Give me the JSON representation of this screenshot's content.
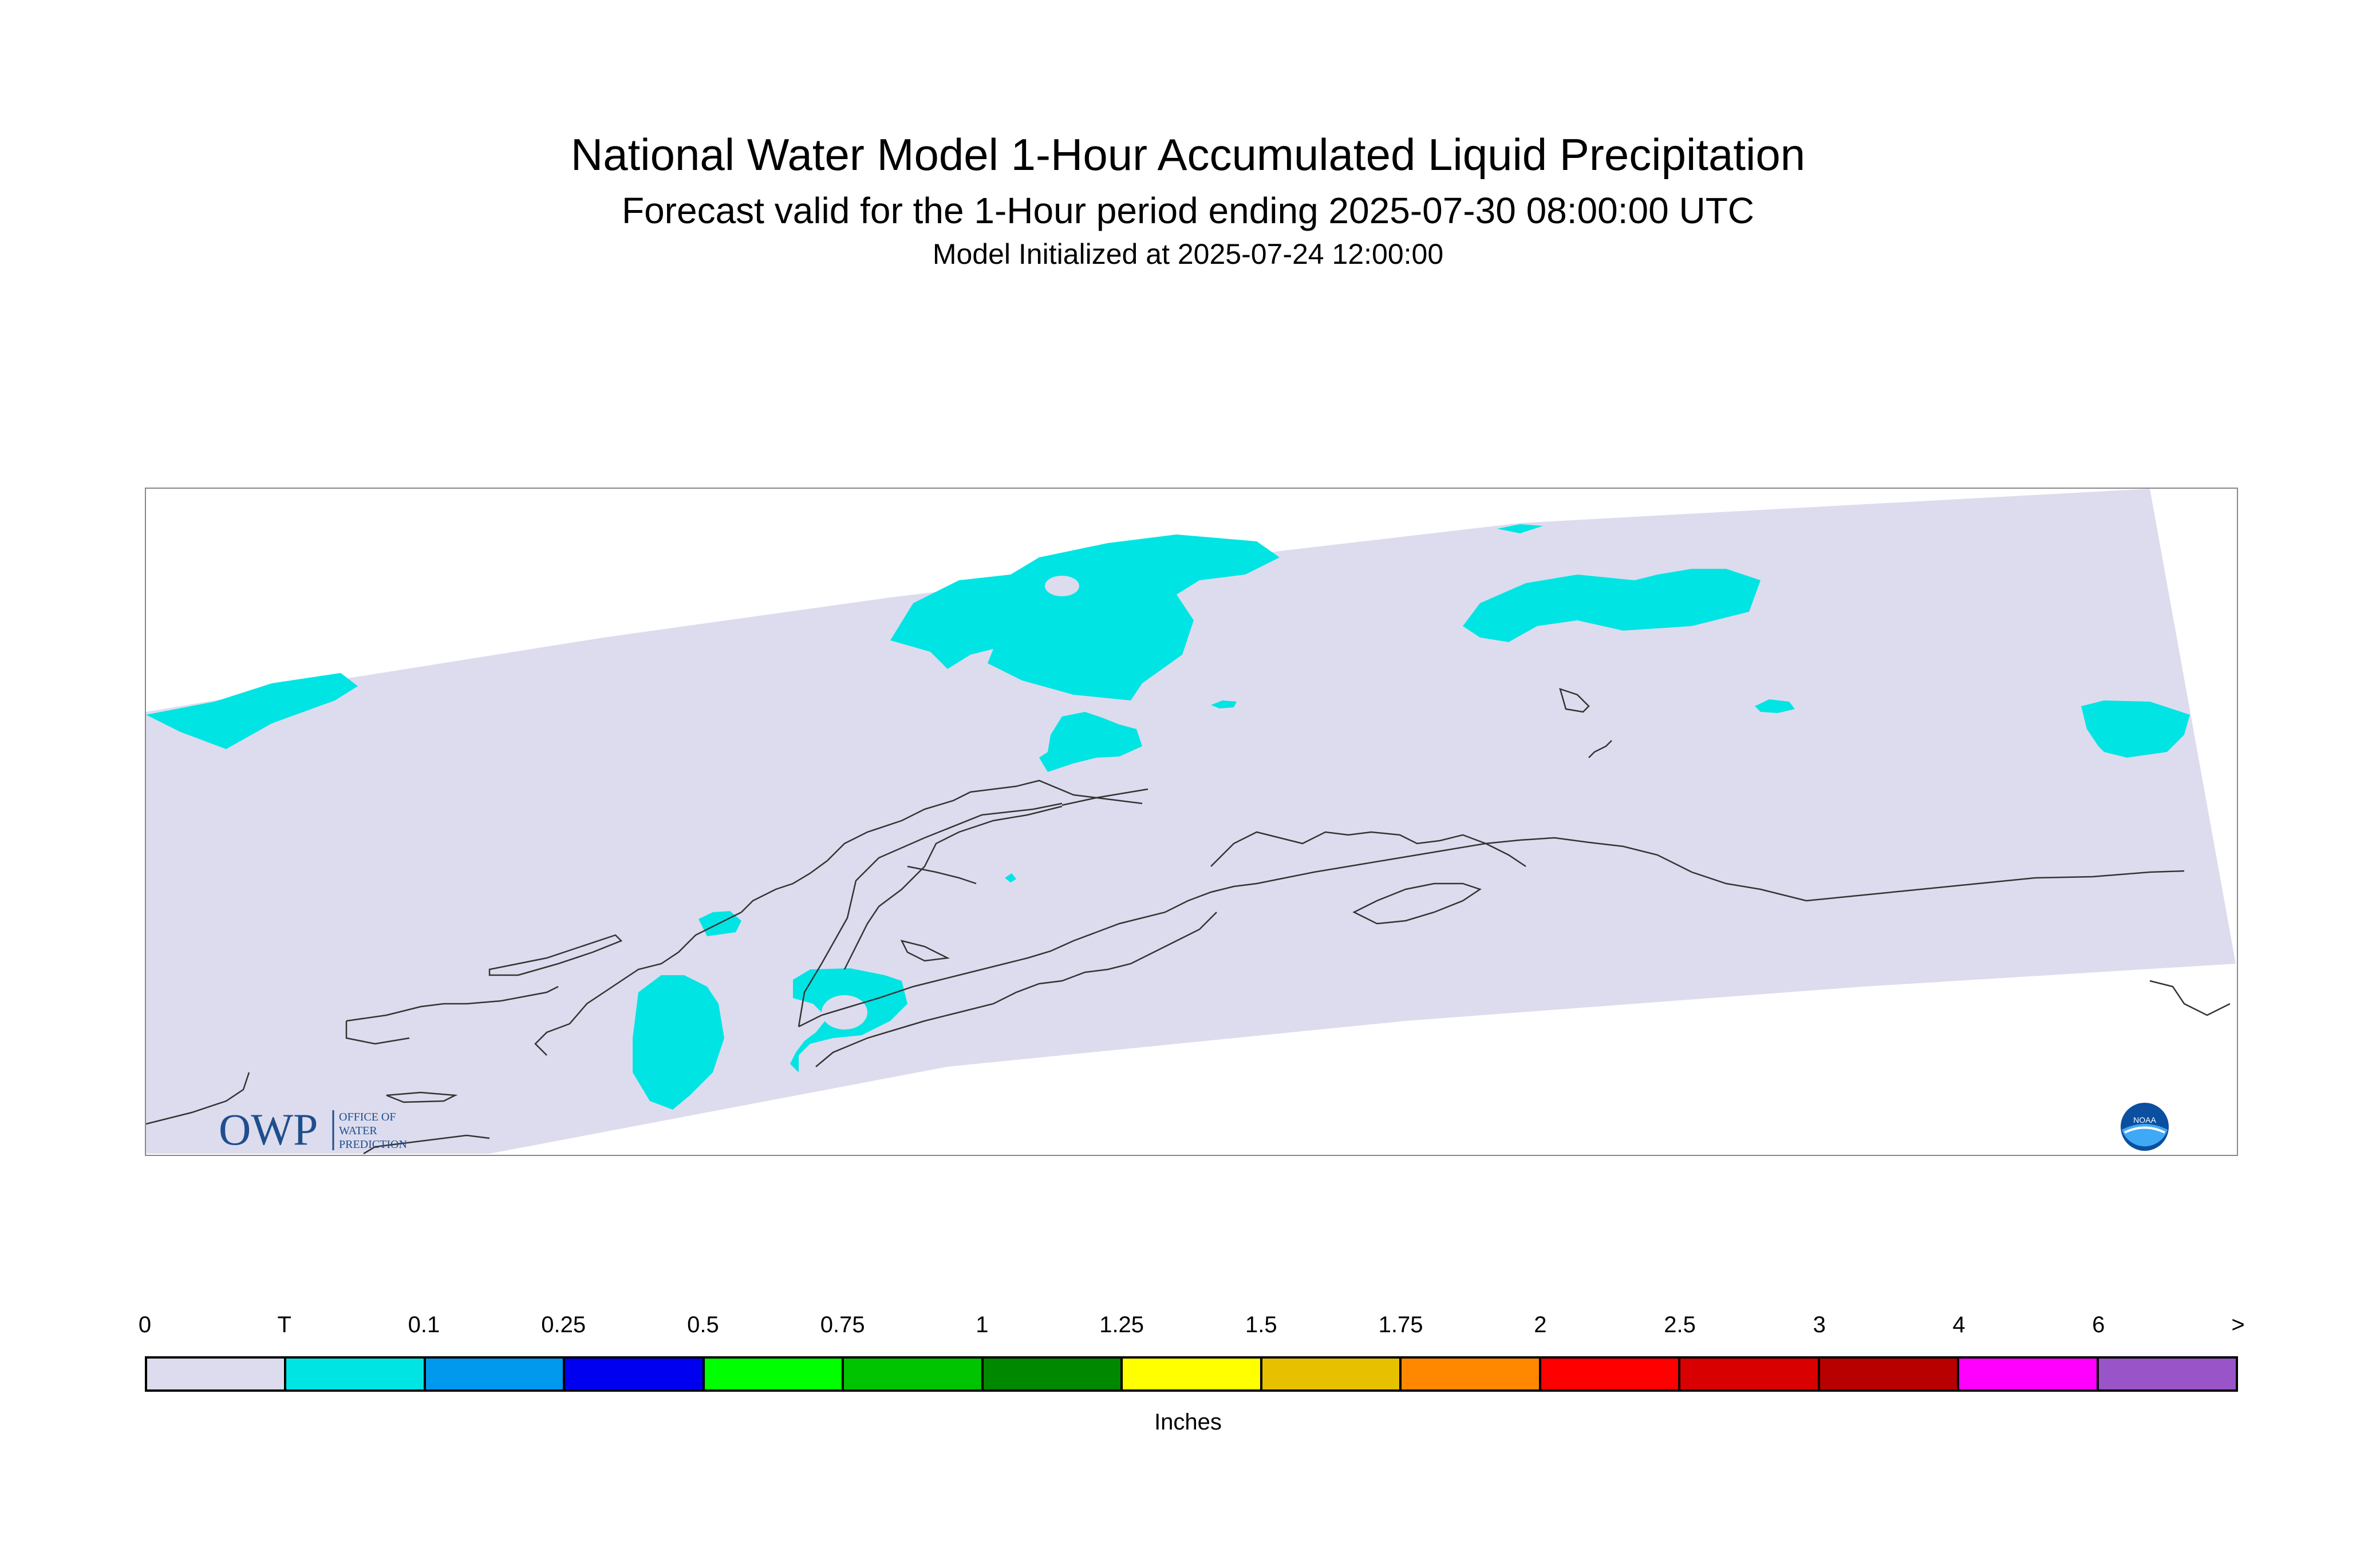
{
  "header": {
    "title": "National Water Model 1-Hour Accumulated Liquid Precipitation",
    "subtitle": "Forecast valid for the 1-Hour period ending 2025-07-30 08:00:00 UTC",
    "init": "Model Initialized at 2025-07-24 12:00:00"
  },
  "map": {
    "background_color": "#dcdcee",
    "precip_color": "#00e4e4",
    "coastline_color": "#333333"
  },
  "logos": {
    "owp": {
      "mark": "OWP",
      "text_lines": [
        "OFFICE OF",
        "WATER",
        "PREDICTION"
      ]
    },
    "noaa": {
      "mark": "NOAA"
    }
  },
  "legend": {
    "labels": [
      "0",
      "T",
      "0.1",
      "0.25",
      "0.5",
      "0.75",
      "1",
      "1.25",
      "1.5",
      "1.75",
      "2",
      "2.5",
      "3",
      "4",
      "6",
      ">"
    ],
    "colors": [
      "#dcdcee",
      "#00e4e4",
      "#0099ee",
      "#0000f0",
      "#00ff00",
      "#00c400",
      "#008800",
      "#ffff00",
      "#e7c000",
      "#ff8800",
      "#ff0000",
      "#d80000",
      "#b80000",
      "#ff00ff",
      "#9955c8"
    ],
    "units": "Inches"
  }
}
